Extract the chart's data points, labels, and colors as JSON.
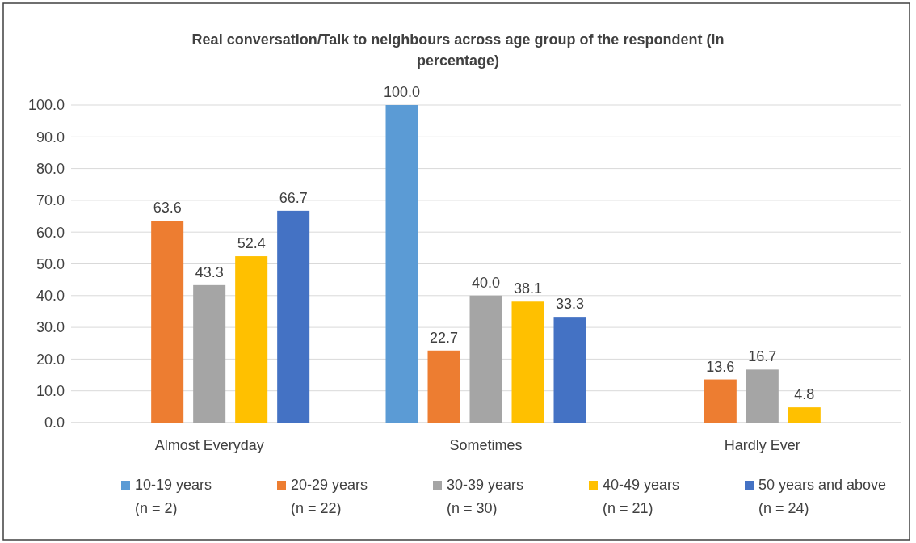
{
  "chart_data": {
    "type": "bar",
    "title": "Real conversation/Talk to neighbours across age group of the respondent (in percentage)",
    "categories": [
      "Almost Everyday",
      "Sometimes",
      "Hardly Ever"
    ],
    "series": [
      {
        "name": "10-19 years (n = 2)",
        "color": "#5b9bd5",
        "values": [
          null,
          100.0,
          null
        ],
        "value_labels": [
          null,
          "100.0",
          null
        ]
      },
      {
        "name": "20-29 years (n = 22)",
        "color": "#ed7d31",
        "values": [
          63.6,
          22.7,
          13.6
        ],
        "value_labels": [
          "63.6",
          "22.7",
          "13.6"
        ]
      },
      {
        "name": "30-39 years (n = 30)",
        "color": "#a5a5a5",
        "values": [
          43.3,
          40.0,
          16.7
        ],
        "value_labels": [
          "43.3",
          "40.0",
          "16.7"
        ]
      },
      {
        "name": "40-49 years (n = 21)",
        "color": "#ffc000",
        "values": [
          52.4,
          38.1,
          4.8
        ],
        "value_labels": [
          "52.4",
          "38.1",
          "4.8"
        ]
      },
      {
        "name": "50 years and above (n = 24)",
        "color": "#4472c4",
        "values": [
          66.7,
          33.3,
          null
        ],
        "value_labels": [
          "66.7",
          "33.3",
          null
        ]
      }
    ],
    "ylim": [
      0,
      100
    ],
    "yticks": [
      {
        "value": 0,
        "label": "0.0"
      },
      {
        "value": 10,
        "label": "10.0"
      },
      {
        "value": 20,
        "label": "20.0"
      },
      {
        "value": 30,
        "label": "30.0"
      },
      {
        "value": 40,
        "label": "40.0"
      },
      {
        "value": 50,
        "label": "50.0"
      },
      {
        "value": 60,
        "label": "60.0"
      },
      {
        "value": 70,
        "label": "70.0"
      },
      {
        "value": 80,
        "label": "80.0"
      },
      {
        "value": 90,
        "label": "90.0"
      },
      {
        "value": 100,
        "label": "100.0"
      }
    ],
    "grid": "y",
    "legend": "bottom"
  }
}
